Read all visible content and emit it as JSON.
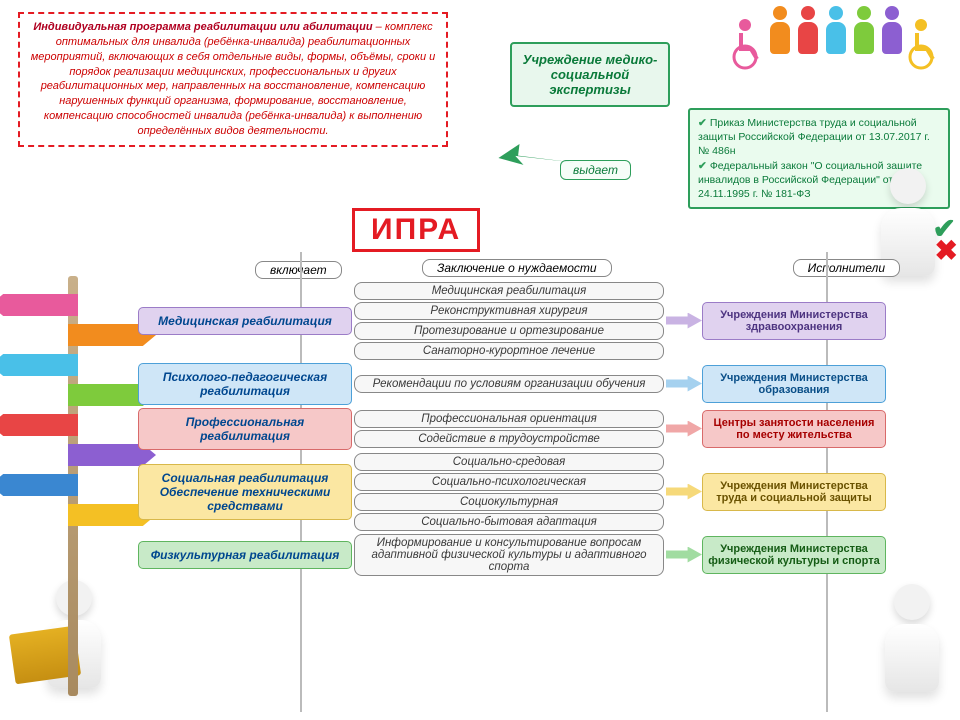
{
  "definition_title": "Индивидуальная программа реабилитации или абилитации",
  "definition_text": " – комплекс оптимальных для инвалида (ребёнка-инвалида) реабилитационных мероприятий, включающих в себя отдельные виды, формы, объёмы, сроки и порядок реализации медицинских, профессиональных и других реабилитационных мер, направленных на восстановление, компенсацию нарушенных функций организма, формирование, восстановление, компенсацию способностей инвалида (ребёнка-инвалида) к выполнению определённых видов деятельности.",
  "institution": "Учреждение медико-социальной экспертизы",
  "issues_label": "выдает",
  "legal_1": "Приказ Министерства труда и социальной защиты Российской Федерации от 13.07.2017 г. № 486н",
  "legal_2": "Федеральный закон \"О социальной защите инвалидов в Российской Федерации\" от 24.11.1995 г. № 181-ФЗ",
  "ipra": "ИПРА",
  "includes_label": "включает",
  "conclusion_label": "Заключение о нуждаемости",
  "executors_label": "Исполнители",
  "rows": [
    {
      "color": "c-purple",
      "cat": "Медицинская реабилитация",
      "items": [
        "Медицинская реабилитация",
        "Реконструктивная хирургия",
        "Протезирование и ортезирование",
        "Санаторно-курортное лечение"
      ],
      "exec": "Учреждения Министерства здравоохранения"
    },
    {
      "color": "c-blue",
      "cat": "Психолого-педагогическая реабилитация",
      "items": [
        "Рекомендации по условиям организации обучения"
      ],
      "exec": "Учреждения Министерства образования"
    },
    {
      "color": "c-red",
      "cat": "Профессиональная реабилитация",
      "items": [
        "Профессиональная ориентация",
        "Содействие в трудоустройстве"
      ],
      "exec": "Центры занятости населения по месту жительства"
    },
    {
      "color": "c-yellow",
      "cat": "Социальная реабилитация Обеспечение техническими средствами",
      "items": [
        "Социально-средовая",
        "Социально-психологическая",
        "Социокультурная",
        "Социально-бытовая адаптация"
      ],
      "exec": "Учреждения Министерства труда и социальной защиты"
    },
    {
      "color": "c-green",
      "cat": "Физкультурная реабилитация",
      "items": [
        "Информирование и консультирование вопросам адаптивной физической культуры и адаптивного спорта"
      ],
      "exec": "Учреждения Министерства физической культуры и спорта"
    }
  ],
  "signpost_colors": [
    "#e85a9c",
    "#f28c1e",
    "#49c0e8",
    "#7ecb3c",
    "#e84545",
    "#8c5fd1",
    "#3a87d1",
    "#f4c024"
  ],
  "figure_colors": [
    "#f28c1e",
    "#e84545",
    "#49c0e8",
    "#7ecb3c",
    "#8c5fd1"
  ],
  "wheelchair_colors": [
    "#e85a9c",
    "#f4c024"
  ]
}
